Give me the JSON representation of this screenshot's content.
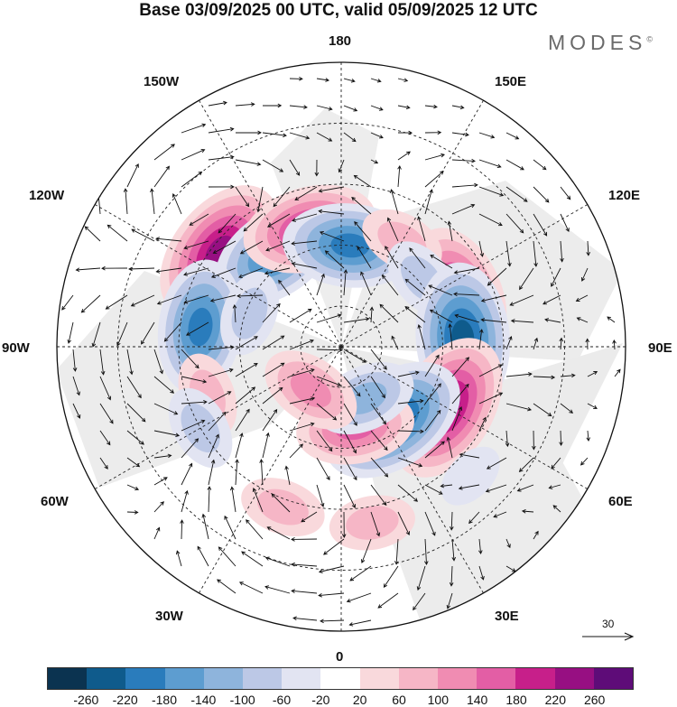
{
  "title": "Base 03/09/2025 00 UTC, valid 05/09/2025 12 UTC",
  "logo": "MODES",
  "logo_mark": "©",
  "longitude_labels": {
    "top": "180",
    "bottom": "0",
    "left": "90W",
    "right": "90E",
    "upper_left_1": "150W",
    "upper_left_2": "120W",
    "upper_right_1": "150E",
    "upper_right_2": "120E",
    "lower_left_1": "60W",
    "lower_left_2": "30W",
    "lower_right_1": "60E",
    "lower_right_2": "30E"
  },
  "reference_vector_label": "30",
  "colorbar": {
    "colors": [
      "#0b3350",
      "#0f5b8c",
      "#2a7cbc",
      "#5d9dd0",
      "#8eb4dc",
      "#bcc8e6",
      "#e2e4f2",
      "#ffffff",
      "#f9d9dc",
      "#f6b6c6",
      "#f08cb2",
      "#e35ea5",
      "#c71f8a",
      "#970f82",
      "#5e0c78"
    ],
    "ticks": [
      "-260",
      "-220",
      "-180",
      "-140",
      "-100",
      "-60",
      "-20",
      "20",
      "60",
      "100",
      "140",
      "180",
      "220",
      "260"
    ]
  },
  "anomalies": [
    {
      "lon": -128,
      "colat": 38,
      "value": 230
    },
    {
      "lon": -145,
      "colat": 28,
      "value": -210
    },
    {
      "lon": -165,
      "colat": 30,
      "value": 200
    },
    {
      "lon": 175,
      "colat": 25,
      "value": -180
    },
    {
      "lon": 115,
      "colat": 32,
      "value": 200
    },
    {
      "lon": 150,
      "colat": 30,
      "value": 90
    },
    {
      "lon": 130,
      "colat": 26,
      "value": -60
    },
    {
      "lon": 94,
      "colat": 30,
      "value": -220
    },
    {
      "lon": 60,
      "colat": 30,
      "value": 230
    },
    {
      "lon": 35,
      "colat": 22,
      "value": -220
    },
    {
      "lon": 10,
      "colat": 20,
      "value": 140
    },
    {
      "lon": 25,
      "colat": 14,
      "value": -120
    },
    {
      "lon": -35,
      "colat": 13,
      "value": 130
    },
    {
      "lon": -98,
      "colat": 35,
      "value": -200
    },
    {
      "lon": -70,
      "colat": 35,
      "value": 80
    },
    {
      "lon": -60,
      "colat": 40,
      "value": -60
    },
    {
      "lon": -20,
      "colat": 42,
      "value": 70
    },
    {
      "lon": 10,
      "colat": 44,
      "value": 60
    },
    {
      "lon": 45,
      "colat": 45,
      "value": -40
    },
    {
      "lon": -110,
      "colat": 24,
      "value": -90
    }
  ]
}
